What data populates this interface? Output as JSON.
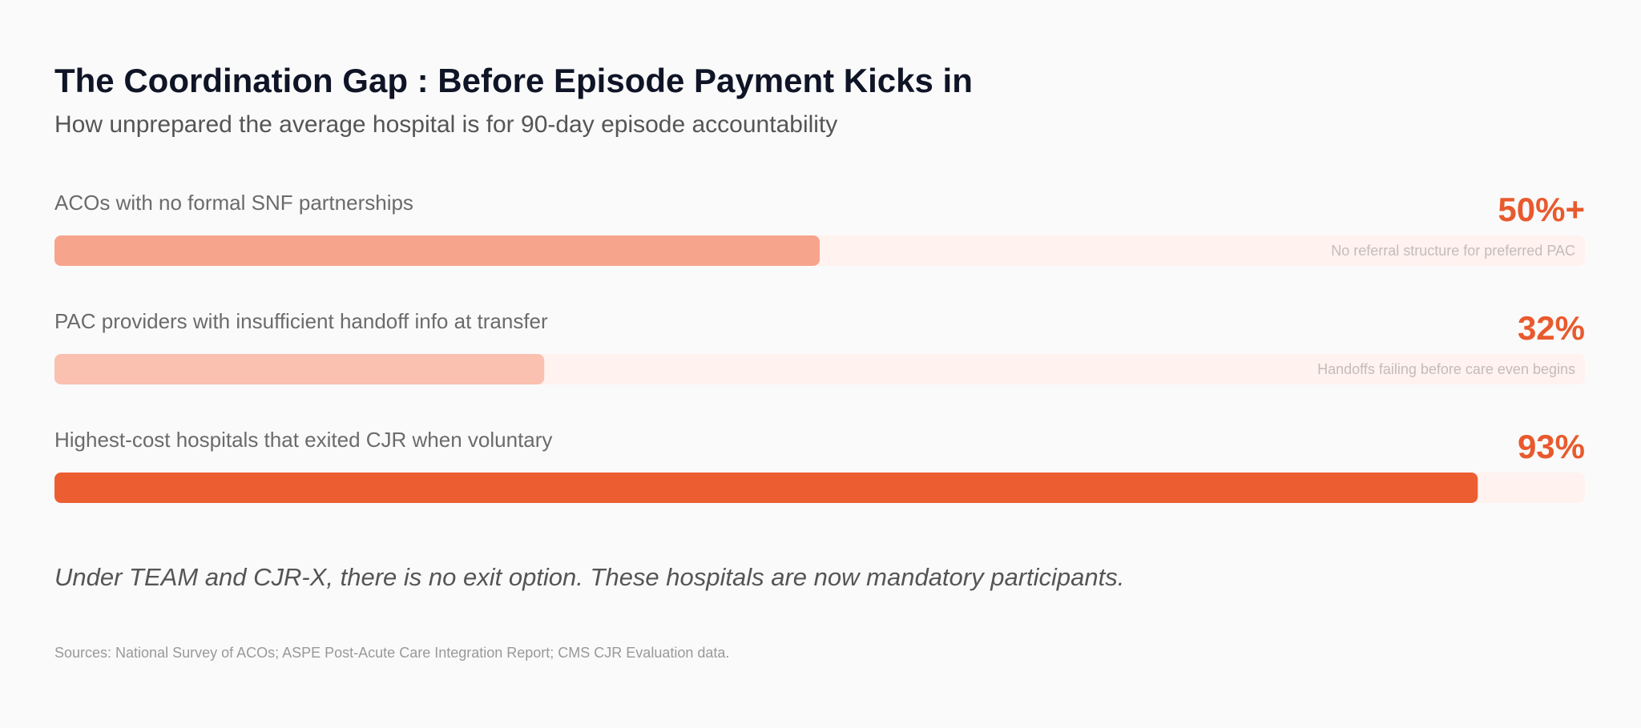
{
  "chart_data": {
    "type": "bar",
    "title": "The Coordination Gap : Before Episode Payment Kicks in",
    "subtitle": "How unprepared the average hospital is for 90-day episode accountability",
    "categories": [
      "ACOs with no formal SNF partnerships",
      "PAC providers with insufficient handoff info at transfer",
      "Highest-cost hospitals that exited CJR when voluntary"
    ],
    "values": [
      50,
      32,
      93
    ],
    "value_labels": [
      "50%+",
      "32%",
      "93%"
    ],
    "bar_notes": [
      "No referral structure for preferred PAC",
      "Handoffs failing before care even begins",
      null
    ],
    "colors": [
      "#f7a48c",
      "#fac0b0",
      "#ec5e32"
    ],
    "xlim": [
      0,
      100
    ],
    "annotation": "Under TEAM and CJR-X, there is no exit option. These hospitals are now mandatory participants.",
    "source": "Sources: National Survey of ACOs; ASPE Post-Acute Care Integration Report; CMS CJR Evaluation data."
  }
}
